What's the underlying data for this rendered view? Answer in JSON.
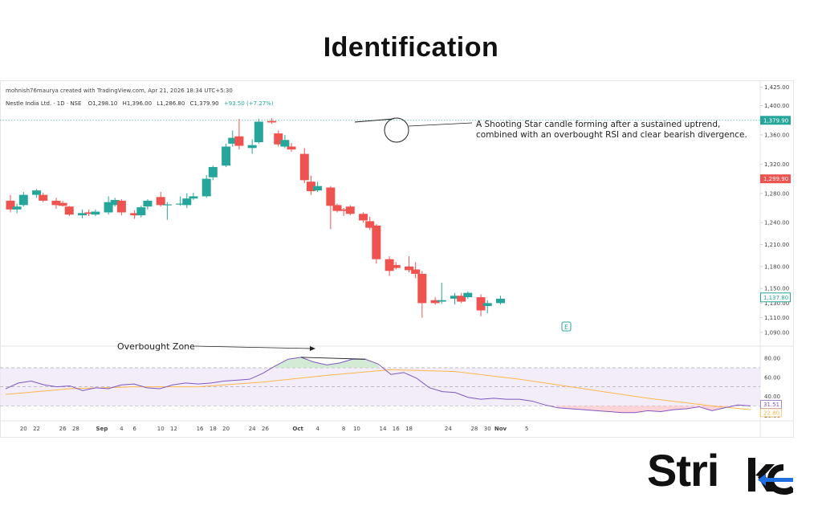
{
  "page": {
    "headline": "Identification",
    "brand": {
      "text": "Stri",
      "mark_letters": "ke",
      "colors": {
        "accent": "#1f6fe0",
        "dark": "#111111"
      }
    }
  },
  "chart_data": {
    "type": "candlestick",
    "credit": "mohnish76maurya created with TradingView.com, Apr 21, 2026 18:34 UTC+5:30",
    "symbol": "Nestle India Ltd. · 1D · NSE",
    "ohlc_legend": {
      "O": "O1,298.10",
      "H": "H1,396.00",
      "L": "L1,286.80",
      "C": "C1,379.90",
      "change": "+93.50 (+7.27%)"
    },
    "y_ticks": [
      {
        "label": "1,425.00",
        "value": 1425
      },
      {
        "label": "1,400.00",
        "value": 1400
      },
      {
        "label": "1,360.00",
        "value": 1360
      },
      {
        "label": "1,320.00",
        "value": 1320
      },
      {
        "label": "1,280.00",
        "value": 1280
      },
      {
        "label": "1,240.00",
        "value": 1240
      },
      {
        "label": "1,210.00",
        "value": 1210
      },
      {
        "label": "1,180.00",
        "value": 1180
      },
      {
        "label": "1,150.00",
        "value": 1150
      },
      {
        "label": "1,130.00",
        "value": 1130
      },
      {
        "label": "1,110.00",
        "value": 1110
      },
      {
        "label": "1,090.00",
        "value": 1090
      }
    ],
    "price_tags": [
      {
        "label": "1,379.90",
        "value": 1379.9,
        "color": "#26a69a",
        "style": "filled"
      },
      {
        "label": "1,299.90",
        "value": 1299.9,
        "color": "#ef5350",
        "style": "filled"
      },
      {
        "label": "1,137.80",
        "value": 1137.8,
        "color": "#26a69a",
        "style": "outline"
      }
    ],
    "ref_line_value": 1379.9,
    "price_range": [
      1081,
      1428
    ],
    "candles": [
      {
        "d": 18,
        "o": 1270,
        "h": 1278,
        "l": 1254,
        "c": 1258
      },
      {
        "d": 19,
        "o": 1258,
        "h": 1266,
        "l": 1253,
        "c": 1262
      },
      {
        "d": 20,
        "o": 1264,
        "h": 1282,
        "l": 1262,
        "c": 1278
      },
      {
        "d": 22,
        "o": 1278,
        "h": 1286,
        "l": 1274,
        "c": 1284
      },
      {
        "d": 23,
        "o": 1278,
        "h": 1281,
        "l": 1268,
        "c": 1270
      },
      {
        "d": 25,
        "o": 1270,
        "h": 1274,
        "l": 1259,
        "c": 1264
      },
      {
        "d": 26,
        "o": 1267,
        "h": 1270,
        "l": 1262,
        "c": 1263
      },
      {
        "d": 27,
        "o": 1262,
        "h": 1263,
        "l": 1249,
        "c": 1251
      },
      {
        "d": 29,
        "o": 1250,
        "h": 1258,
        "l": 1246,
        "c": 1253
      },
      {
        "d": 30,
        "o": 1254,
        "h": 1258,
        "l": 1249,
        "c": 1252
      },
      {
        "d": 31,
        "o": 1251,
        "h": 1258,
        "l": 1249,
        "c": 1255
      },
      {
        "d": 33,
        "o": 1254,
        "h": 1276,
        "l": 1251,
        "c": 1268
      },
      {
        "d": 34,
        "o": 1264,
        "h": 1274,
        "l": 1262,
        "c": 1271
      },
      {
        "d": 35,
        "o": 1270,
        "h": 1272,
        "l": 1250,
        "c": 1254
      },
      {
        "d": 37,
        "o": 1253,
        "h": 1257,
        "l": 1245,
        "c": 1250
      },
      {
        "d": 38,
        "o": 1250,
        "h": 1263,
        "l": 1247,
        "c": 1261
      },
      {
        "d": 39,
        "o": 1262,
        "h": 1272,
        "l": 1258,
        "c": 1270
      },
      {
        "d": 41,
        "o": 1275,
        "h": 1282,
        "l": 1262,
        "c": 1264
      },
      {
        "d": 42,
        "o": 1264,
        "h": 1268,
        "l": 1244,
        "c": 1265
      },
      {
        "d": 44,
        "o": 1265,
        "h": 1276,
        "l": 1263,
        "c": 1266
      },
      {
        "d": 45,
        "o": 1264,
        "h": 1280,
        "l": 1260,
        "c": 1273
      },
      {
        "d": 46,
        "o": 1273,
        "h": 1281,
        "l": 1271,
        "c": 1276
      },
      {
        "d": 48,
        "o": 1276,
        "h": 1305,
        "l": 1274,
        "c": 1300
      },
      {
        "d": 49,
        "o": 1302,
        "h": 1318,
        "l": 1298,
        "c": 1316
      },
      {
        "d": 51,
        "o": 1318,
        "h": 1348,
        "l": 1316,
        "c": 1344
      },
      {
        "d": 52,
        "o": 1348,
        "h": 1366,
        "l": 1344,
        "c": 1356
      },
      {
        "d": 53,
        "o": 1358,
        "h": 1382,
        "l": 1340,
        "c": 1345
      },
      {
        "d": 55,
        "o": 1342,
        "h": 1354,
        "l": 1334,
        "c": 1346
      },
      {
        "d": 56,
        "o": 1350,
        "h": 1382,
        "l": 1348,
        "c": 1378
      },
      {
        "d": 58,
        "o": 1379,
        "h": 1383,
        "l": 1375,
        "c": 1377
      },
      {
        "d": 59,
        "o": 1362,
        "h": 1366,
        "l": 1344,
        "c": 1347
      },
      {
        "d": 60,
        "o": 1344,
        "h": 1360,
        "l": 1342,
        "c": 1353
      },
      {
        "d": 61,
        "o": 1344,
        "h": 1349,
        "l": 1337,
        "c": 1340
      },
      {
        "d": 63,
        "o": 1334,
        "h": 1342,
        "l": 1294,
        "c": 1298
      },
      {
        "d": 64,
        "o": 1296,
        "h": 1304,
        "l": 1278,
        "c": 1283
      },
      {
        "d": 65,
        "o": 1284,
        "h": 1296,
        "l": 1282,
        "c": 1290
      },
      {
        "d": 67,
        "o": 1288,
        "h": 1290,
        "l": 1231,
        "c": 1263
      },
      {
        "d": 68,
        "o": 1264,
        "h": 1266,
        "l": 1254,
        "c": 1256
      },
      {
        "d": 69,
        "o": 1258,
        "h": 1260,
        "l": 1249,
        "c": 1256
      },
      {
        "d": 70,
        "o": 1262,
        "h": 1264,
        "l": 1250,
        "c": 1252
      },
      {
        "d": 72,
        "o": 1252,
        "h": 1254,
        "l": 1240,
        "c": 1243
      },
      {
        "d": 73,
        "o": 1242,
        "h": 1248,
        "l": 1230,
        "c": 1233
      },
      {
        "d": 74,
        "o": 1236,
        "h": 1238,
        "l": 1184,
        "c": 1190
      },
      {
        "d": 76,
        "o": 1190,
        "h": 1194,
        "l": 1167,
        "c": 1174
      },
      {
        "d": 77,
        "o": 1182,
        "h": 1186,
        "l": 1176,
        "c": 1178
      },
      {
        "d": 79,
        "o": 1180,
        "h": 1194,
        "l": 1172,
        "c": 1175
      },
      {
        "d": 80,
        "o": 1176,
        "h": 1186,
        "l": 1164,
        "c": 1170
      },
      {
        "d": 81,
        "o": 1170,
        "h": 1174,
        "l": 1110,
        "c": 1130
      },
      {
        "d": 83,
        "o": 1134,
        "h": 1138,
        "l": 1128,
        "c": 1130
      },
      {
        "d": 84,
        "o": 1132,
        "h": 1158,
        "l": 1129,
        "c": 1134
      },
      {
        "d": 86,
        "o": 1136,
        "h": 1144,
        "l": 1128,
        "c": 1140
      },
      {
        "d": 87,
        "o": 1140,
        "h": 1144,
        "l": 1130,
        "c": 1132
      },
      {
        "d": 88,
        "o": 1138,
        "h": 1146,
        "l": 1136,
        "c": 1144
      },
      {
        "d": 90,
        "o": 1138,
        "h": 1142,
        "l": 1112,
        "c": 1120
      },
      {
        "d": 91,
        "o": 1126,
        "h": 1134,
        "l": 1116,
        "c": 1130
      },
      {
        "d": 93,
        "o": 1130,
        "h": 1140,
        "l": 1128,
        "c": 1136
      }
    ],
    "rsi": {
      "y_ticks": [
        {
          "label": "80.00",
          "value": 80
        },
        {
          "label": "60.00",
          "value": 60
        },
        {
          "label": "40.00",
          "value": 40
        },
        {
          "label": "20.00",
          "value": 20
        }
      ],
      "range": [
        16,
        91
      ],
      "band": [
        30,
        70
      ],
      "midline": 50,
      "overbought_level": 70,
      "rsi_points": [
        [
          0,
          48
        ],
        [
          4,
          54
        ],
        [
          8,
          56
        ],
        [
          12,
          52
        ],
        [
          16,
          50
        ],
        [
          20,
          51
        ],
        [
          24,
          46
        ],
        [
          28,
          49
        ],
        [
          32,
          48
        ],
        [
          36,
          52
        ],
        [
          40,
          53
        ],
        [
          44,
          49
        ],
        [
          48,
          48
        ],
        [
          52,
          52
        ],
        [
          56,
          54
        ],
        [
          60,
          53
        ],
        [
          64,
          54
        ],
        [
          68,
          56
        ],
        [
          72,
          57
        ],
        [
          76,
          58
        ],
        [
          80,
          64
        ],
        [
          84,
          72
        ],
        [
          88,
          79
        ],
        [
          92,
          81
        ],
        [
          96,
          76
        ],
        [
          100,
          73
        ],
        [
          104,
          75
        ],
        [
          108,
          79
        ],
        [
          112,
          79
        ],
        [
          116,
          74
        ],
        [
          120,
          63
        ],
        [
          124,
          65
        ],
        [
          128,
          59
        ],
        [
          132,
          49
        ],
        [
          136,
          45
        ],
        [
          140,
          44
        ],
        [
          144,
          39
        ],
        [
          148,
          37
        ],
        [
          152,
          38
        ],
        [
          156,
          37
        ],
        [
          160,
          37
        ],
        [
          164,
          35
        ],
        [
          168,
          31
        ],
        [
          172,
          28
        ],
        [
          176,
          27
        ],
        [
          180,
          26
        ],
        [
          184,
          25
        ],
        [
          188,
          24
        ],
        [
          192,
          23
        ],
        [
          196,
          23
        ],
        [
          200,
          25
        ],
        [
          204,
          24
        ],
        [
          208,
          26
        ],
        [
          212,
          27
        ],
        [
          216,
          29
        ],
        [
          220,
          25
        ],
        [
          224,
          28
        ],
        [
          228,
          31
        ],
        [
          232,
          30
        ]
      ],
      "ma_points": [
        [
          0,
          42
        ],
        [
          20,
          48
        ],
        [
          40,
          50
        ],
        [
          60,
          50
        ],
        [
          80,
          55
        ],
        [
          100,
          62
        ],
        [
          120,
          68
        ],
        [
          140,
          66
        ],
        [
          160,
          58
        ],
        [
          180,
          48
        ],
        [
          200,
          38
        ],
        [
          220,
          30
        ],
        [
          232,
          26
        ]
      ],
      "tags": [
        {
          "label": "31.51",
          "value": 31.51,
          "color": "#7e57c2"
        },
        {
          "label": "22.80",
          "value": 22.8,
          "color": "#ffb74d"
        }
      ]
    },
    "x_ticks": [
      {
        "label": "20",
        "d": 20
      },
      {
        "label": "22",
        "d": 22
      },
      {
        "label": "26",
        "d": 26
      },
      {
        "label": "28",
        "d": 28
      },
      {
        "label": "Sep",
        "d": 32
      },
      {
        "label": "4",
        "d": 35
      },
      {
        "label": "6",
        "d": 37
      },
      {
        "label": "10",
        "d": 41
      },
      {
        "label": "12",
        "d": 43
      },
      {
        "label": "16",
        "d": 47
      },
      {
        "label": "18",
        "d": 49
      },
      {
        "label": "20",
        "d": 51
      },
      {
        "label": "24",
        "d": 55
      },
      {
        "label": "26",
        "d": 57
      },
      {
        "label": "Oct",
        "d": 62
      },
      {
        "label": "4",
        "d": 65
      },
      {
        "label": "8",
        "d": 69
      },
      {
        "label": "10",
        "d": 71
      },
      {
        "label": "14",
        "d": 75
      },
      {
        "label": "16",
        "d": 77
      },
      {
        "label": "18",
        "d": 79
      },
      {
        "label": "24",
        "d": 85
      },
      {
        "label": "28",
        "d": 89
      },
      {
        "label": "30",
        "d": 91
      },
      {
        "label": "Nov",
        "d": 93
      },
      {
        "label": "5",
        "d": 97
      }
    ],
    "annotations": {
      "shooting_star": {
        "line1": "A Shooting Star candle forming after a sustained uptrend,",
        "line2": "combined with an overbought RSI and clear bearish divergence."
      },
      "overbought_zone": "Overbought Zone",
      "earnings_marker": "E"
    },
    "colors": {
      "up": "#26a69a",
      "down": "#ef5350",
      "rsi": "#7e57c2",
      "ma": "#ffb74d",
      "band": "#ede7f6"
    },
    "grid": false
  }
}
